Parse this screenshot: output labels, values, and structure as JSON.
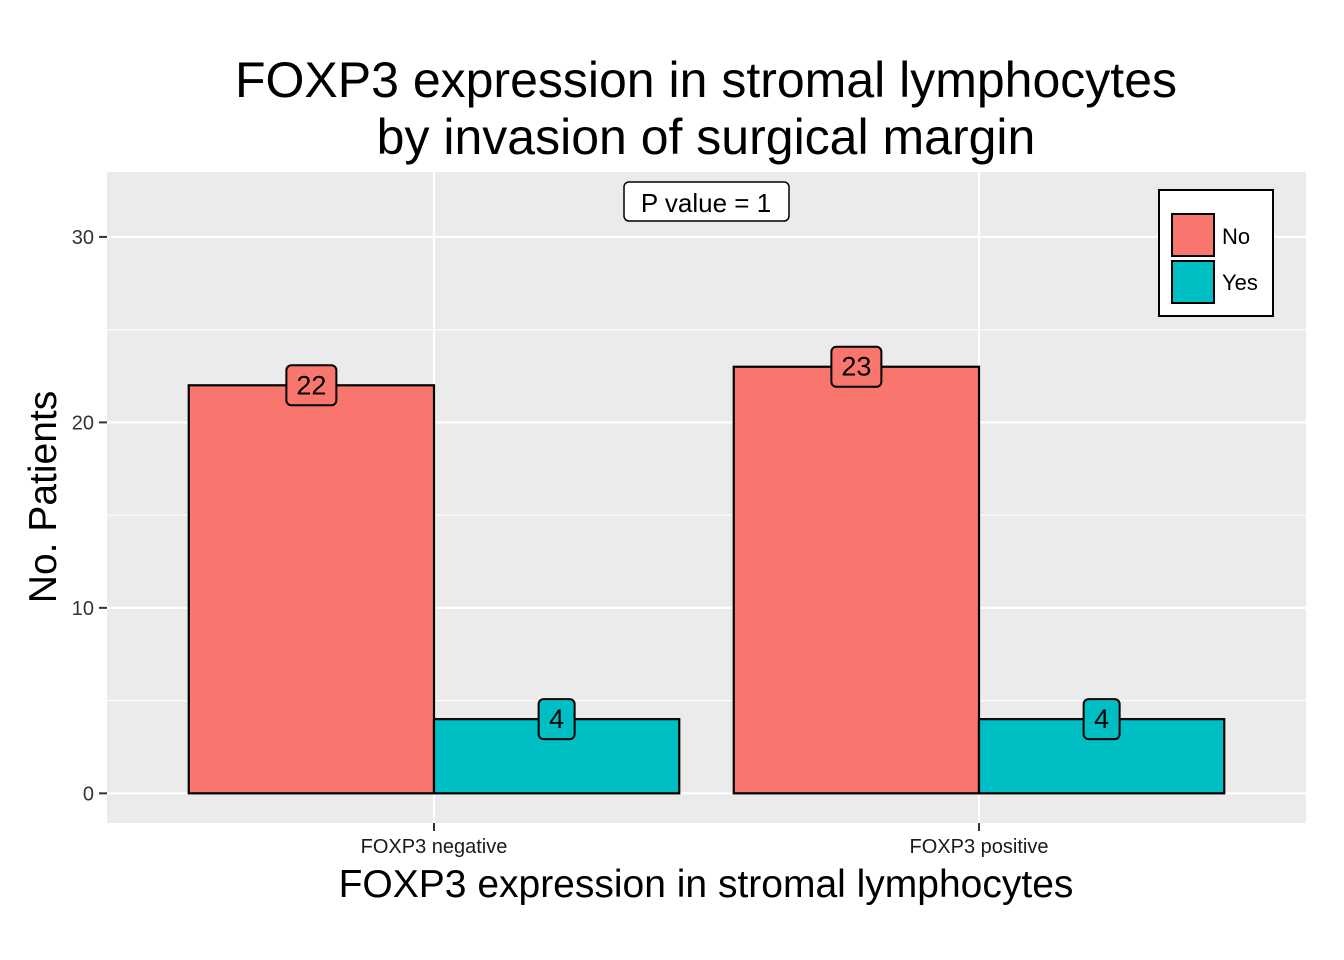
{
  "chart_data": {
    "type": "bar",
    "title_lines": [
      "FOXP3 expression in stromal lymphocytes",
      "by invasion of surgical margin"
    ],
    "xlabel": "FOXP3 expression in stromal lymphocytes",
    "ylabel": "No. Patients",
    "categories": [
      "FOXP3 negative",
      "FOXP3 positive"
    ],
    "series": [
      {
        "name": "No",
        "values": [
          22,
          23
        ],
        "color": "#F8766D"
      },
      {
        "name": "Yes",
        "values": [
          4,
          4
        ],
        "color": "#00BFC4"
      }
    ],
    "ylim": [
      -1.6,
      33.5
    ],
    "yticks": [
      0,
      10,
      20,
      30
    ],
    "grid": true,
    "legend_position": "top-right",
    "annotation": "P value = 1",
    "panel_background": "#EBEBEB"
  }
}
